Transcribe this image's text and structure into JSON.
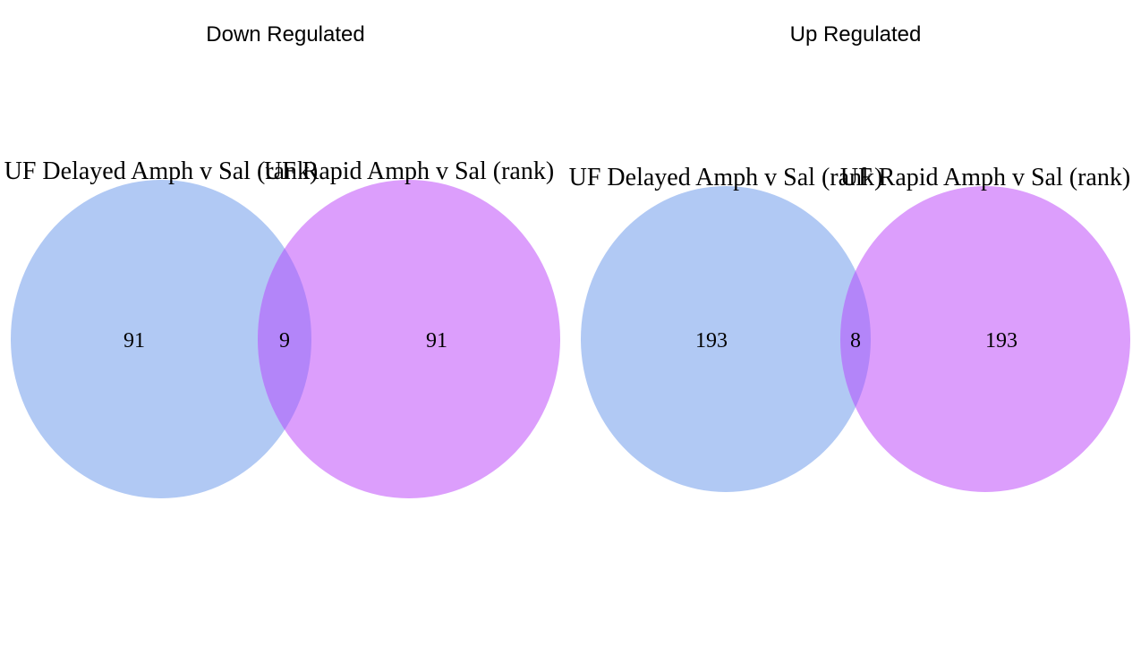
{
  "colors": {
    "set_a": "#b1c9f4",
    "set_b": "#dc9efc",
    "overlap": "#b385f9"
  },
  "panels": [
    {
      "title": "Down Regulated",
      "set_a": {
        "label": "UF Delayed Amph v Sal (rank)",
        "count": "91"
      },
      "set_b": {
        "label": "UF Rapid Amph v Sal (rank)",
        "count": "91"
      },
      "overlap": {
        "count": "9"
      }
    },
    {
      "title": "Up Regulated",
      "set_a": {
        "label": "UF Delayed Amph v Sal (rank)",
        "count": "193"
      },
      "set_b": {
        "label": "UF Rapid Amph v Sal (rank)",
        "count": "193"
      },
      "overlap": {
        "count": "8"
      }
    }
  ]
}
